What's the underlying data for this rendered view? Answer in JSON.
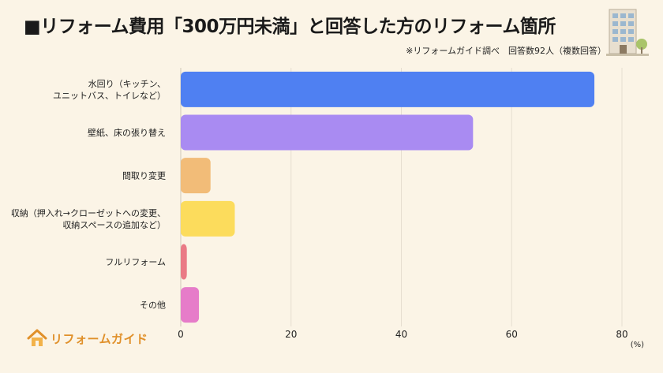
{
  "title": "■リフォーム費用「300万円未満」と回答した方のリフォーム箇所",
  "source": "※リフォームガイド調べ　回答数92人（複数回答）",
  "logo": {
    "text": "リフォームガイド",
    "icon": "house-logo-icon"
  },
  "illustration": {
    "icon": "apartment-building-icon"
  },
  "chart_data": {
    "type": "bar",
    "orientation": "horizontal",
    "categories": [
      [
        "水回り（キッチン、",
        "ユニットバス、トイレなど）"
      ],
      [
        "壁紙、床の張り替え"
      ],
      [
        "間取り変更"
      ],
      [
        "収納（押入れ→クローゼットへの変更、",
        "収納スペースの追加など）"
      ],
      [
        "フルリフォーム"
      ],
      [
        "その他"
      ]
    ],
    "values": [
      75,
      53,
      5.4,
      9.8,
      1.1,
      3.3
    ],
    "colors": [
      "#4F80F2",
      "#A98BF2",
      "#F2BC78",
      "#FCDC5C",
      "#EA7A85",
      "#E67CC9"
    ],
    "xlim": [
      0,
      80
    ],
    "xticks": [
      0,
      20,
      40,
      60,
      80
    ],
    "unit": "(%)",
    "grid": true
  }
}
